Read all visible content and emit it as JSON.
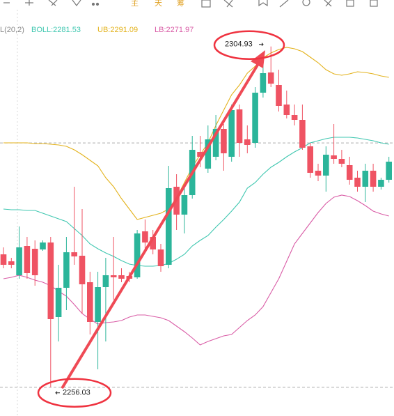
{
  "chart_data": {
    "type": "candlestick",
    "toolbar": [
      "主",
      "天",
      "筹"
    ],
    "legend_prefix": "L(20,2)",
    "up_color": "#2bb59a",
    "down_color": "#ef5363",
    "ylim": [
      2251.9,
      2311.6
    ],
    "open": [
      2275.1,
      2274.1,
      2272.1,
      2276.3,
      2275.9,
      2275.8,
      2276.8,
      2266.1,
      2270.3,
      2275.4,
      2274.9,
      2271.1,
      2265.4,
      2270.4,
      2272.1,
      2272.1,
      2272.0,
      2271.8,
      2278.4,
      2277.6,
      2275.8,
      2273.6,
      2284.8,
      2280.8,
      2283.6,
      2289.8,
      2287.4,
      2289.1,
      2293.1,
      2289.1,
      2295.9,
      2291.6,
      2291.1,
      2298.3,
      2301.2,
      2299.4,
      2296.6,
      2295.1,
      2294.4,
      2290.6,
      2287.1,
      2286.4,
      2289.3,
      2288.8,
      2287.9,
      2286.1,
      2284.8,
      2287.1,
      2284.8,
      2285.8
    ],
    "high": [
      2276.1,
      2274.6,
      2279.1,
      2277.6,
      2277.1,
      2277.1,
      2277.6,
      2273.6,
      2277.6,
      2284.8,
      2281.6,
      2272.6,
      2272.6,
      2274.6,
      2277.6,
      2273.1,
      2272.6,
      2278.6,
      2280.1,
      2278.6,
      2276.6,
      2287.8,
      2286.6,
      2284.6,
      2292.1,
      2292.1,
      2293.6,
      2295.1,
      2293.8,
      2296.6,
      2296.6,
      2293.6,
      2299.1,
      2302.6,
      2304.93,
      2301.6,
      2298.6,
      2296.6,
      2296.6,
      2291.1,
      2288.1,
      2290.6,
      2293.8,
      2290.1,
      2289.1,
      2287.1,
      2288.1,
      2288.1,
      2286.1,
      2289.1
    ],
    "low": [
      2273.1,
      2273.1,
      2271.6,
      2271.6,
      2270.6,
      2275.6,
      2256.03,
      2262.6,
      2267.1,
      2273.6,
      2266.6,
      2263.6,
      2258.6,
      2262.6,
      2268.6,
      2271.1,
      2271.1,
      2271.6,
      2275.6,
      2275.1,
      2272.6,
      2273.1,
      2278.6,
      2278.1,
      2283.1,
      2287.6,
      2286.8,
      2288.6,
      2287.1,
      2288.4,
      2289.1,
      2289.6,
      2290.4,
      2297.6,
      2299.1,
      2295.6,
      2294.6,
      2293.6,
      2290.1,
      2286.1,
      2285.6,
      2284.1,
      2288.1,
      2287.6,
      2285.1,
      2284.1,
      2282.6,
      2284.1,
      2284.4,
      2285.4
    ],
    "close": [
      2273.6,
      2273.6,
      2276.1,
      2272.4,
      2272.1,
      2276.8,
      2265.8,
      2270.3,
      2275.4,
      2274.8,
      2270.8,
      2265.4,
      2270.4,
      2272.1,
      2271.8,
      2271.6,
      2271.6,
      2278.1,
      2276.8,
      2275.8,
      2273.4,
      2284.6,
      2280.8,
      2283.6,
      2290.1,
      2289.1,
      2291.6,
      2293.1,
      2289.6,
      2295.8,
      2291.1,
      2290.8,
      2298.3,
      2301.1,
      2299.6,
      2296.4,
      2295.1,
      2294.4,
      2290.4,
      2286.8,
      2286.4,
      2289.4,
      2288.8,
      2288.1,
      2285.8,
      2284.8,
      2287.1,
      2284.8,
      2285.8,
      2288.4
    ],
    "bands": [
      {
        "label": "BOLL:2281.53",
        "color": "#3fc7b0",
        "values": [
          2281.6,
          2281.5,
          2281.5,
          2281.4,
          2281.4,
          2281.0,
          2280.6,
          2280.2,
          2279.8,
          2278.8,
          2277.8,
          2276.6,
          2275.9,
          2275.3,
          2274.8,
          2274.2,
          2273.7,
          2273.5,
          2273.4,
          2273.4,
          2273.5,
          2273.8,
          2274.4,
          2275.1,
          2276.3,
          2277.1,
          2277.8,
          2279.0,
          2280.1,
          2281.3,
          2282.6,
          2284.6,
          2285.4,
          2286.6,
          2287.6,
          2288.3,
          2289.1,
          2289.8,
          2290.4,
          2291.1,
          2291.4,
          2291.7,
          2291.9,
          2291.9,
          2291.9,
          2291.8,
          2291.6,
          2291.4,
          2291.1,
          2290.9
        ]
      },
      {
        "label": "UB:2291.09",
        "color": "#e3b21b",
        "values": [
          2291.1,
          2291.1,
          2291.1,
          2291.1,
          2291.0,
          2291.0,
          2290.9,
          2290.8,
          2290.6,
          2290.1,
          2289.4,
          2288.6,
          2287.8,
          2286.1,
          2284.8,
          2283.1,
          2281.6,
          2280.1,
          2280.4,
          2280.7,
          2281.0,
          2281.6,
          2283.2,
          2285.4,
          2287.6,
          2289.4,
          2291.1,
          2293.6,
          2295.8,
          2298.0,
          2299.4,
          2301.1,
          2302.1,
          2303.3,
          2304.0,
          2304.5,
          2304.8,
          2304.6,
          2304.2,
          2303.4,
          2302.6,
          2301.6,
          2301.0,
          2300.8,
          2301.0,
          2301.3,
          2301.2,
          2301.0,
          2300.7,
          2300.5
        ]
      },
      {
        "label": "LB:2271.97",
        "color": "#d95ca6",
        "values": [
          2271.6,
          2271.8,
          2272.1,
          2271.8,
          2271.4,
          2271.1,
          2270.6,
          2269.8,
          2269.1,
          2267.9,
          2266.6,
          2265.8,
          2265.1,
          2265.3,
          2265.4,
          2265.6,
          2266.1,
          2266.4,
          2266.4,
          2266.2,
          2266.0,
          2265.6,
          2264.8,
          2264.0,
          2263.1,
          2262.1,
          2262.6,
          2263.0,
          2263.4,
          2263.6,
          2264.6,
          2265.6,
          2266.4,
          2267.6,
          2269.6,
          2271.6,
          2274.1,
          2276.6,
          2278.1,
          2279.6,
          2281.1,
          2282.4,
          2283.3,
          2283.6,
          2283.4,
          2282.8,
          2282.1,
          2281.3,
          2280.9,
          2280.6
        ]
      }
    ],
    "guide_lines": [
      2291.09,
      2256.03
    ],
    "annotations": [
      {
        "text": "2304.93",
        "value": 2304.93
      },
      {
        "text": "2256.03",
        "value": 2256.03
      }
    ]
  }
}
